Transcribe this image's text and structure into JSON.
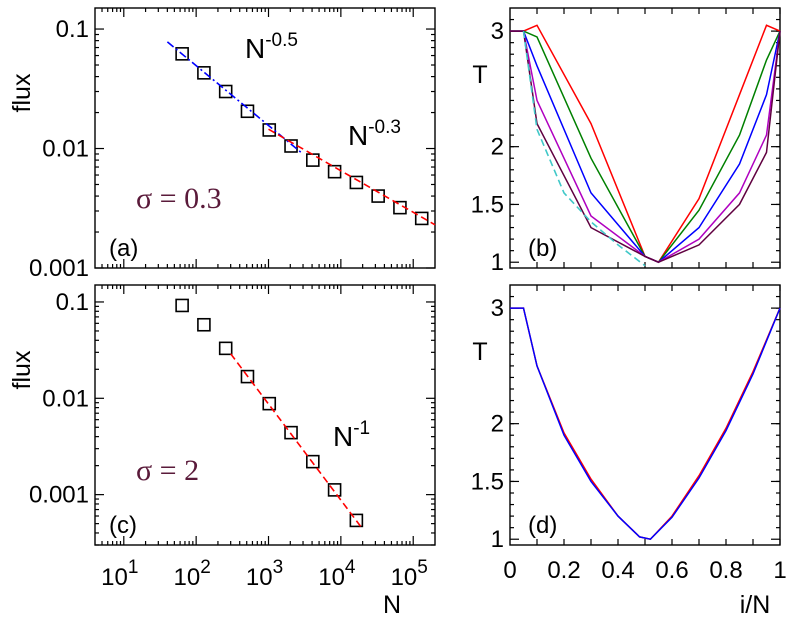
{
  "chart_data": [
    {
      "panel": "a",
      "type": "scatter",
      "panel_label": "(a)",
      "ylabel": "flux",
      "xscale": "log",
      "yscale": "log",
      "xlim": [
        4,
        200000
      ],
      "ylim": [
        0.001,
        0.15
      ],
      "yticks": [
        {
          "v": 0.1,
          "label": "0.1"
        },
        {
          "v": 0.01,
          "label": "0.01"
        },
        {
          "v": 0.001,
          "label": "0.001"
        }
      ],
      "sigma_label": "σ = 0.3",
      "annotations": [
        {
          "base": "N",
          "exp": "-0.5"
        },
        {
          "base": "N",
          "exp": "-0.3"
        }
      ],
      "series": [
        {
          "name": "data",
          "marker": "square",
          "x": [
            64,
            128,
            256,
            512,
            1024,
            2048,
            4096,
            8192,
            16384,
            32768,
            65536,
            131072
          ],
          "y": [
            0.062,
            0.043,
            0.03,
            0.0205,
            0.0143,
            0.0105,
            0.008,
            0.0064,
            0.0052,
            0.004,
            0.0032,
            0.0026
          ]
        },
        {
          "name": "fit N^-0.5",
          "style": "dash-dot",
          "color": "#0000ff",
          "x": [
            40,
            3000
          ],
          "y": [
            0.078,
            0.009
          ]
        },
        {
          "name": "fit N^-0.3",
          "style": "dashed",
          "color": "#ff0000",
          "x": [
            1000,
            200000
          ],
          "y": [
            0.0145,
            0.0023
          ]
        }
      ]
    },
    {
      "panel": "b",
      "type": "line",
      "panel_label": "(b)",
      "ylabel": "T",
      "xlim": [
        0,
        1
      ],
      "ylim": [
        0.95,
        3.2
      ],
      "yticks": [
        {
          "v": 1,
          "label": "1"
        },
        {
          "v": 1.5,
          "label": "1.5"
        },
        {
          "v": 2,
          "label": "2"
        },
        {
          "v": 3,
          "label": "3"
        }
      ],
      "series": [
        {
          "name": "red",
          "color": "#ff0000",
          "x": [
            0,
            0.05,
            0.1,
            0.3,
            0.5,
            0.55,
            0.7,
            0.85,
            0.95,
            1.0
          ],
          "y": [
            3.0,
            3.0,
            3.05,
            2.2,
            1.05,
            1.0,
            1.55,
            2.45,
            3.05,
            3.0
          ]
        },
        {
          "name": "green",
          "color": "#008000",
          "x": [
            0,
            0.05,
            0.1,
            0.3,
            0.5,
            0.55,
            0.7,
            0.85,
            0.95,
            1.0
          ],
          "y": [
            3.0,
            3.0,
            2.95,
            1.9,
            1.05,
            1.0,
            1.45,
            2.1,
            2.75,
            3.0
          ]
        },
        {
          "name": "blue",
          "color": "#0000ff",
          "x": [
            0,
            0.05,
            0.1,
            0.3,
            0.5,
            0.55,
            0.7,
            0.85,
            0.95,
            1.0
          ],
          "y": [
            3.0,
            3.0,
            2.7,
            1.6,
            1.05,
            1.0,
            1.3,
            1.85,
            2.45,
            3.0
          ]
        },
        {
          "name": "purple",
          "color": "#b000c0",
          "x": [
            0,
            0.05,
            0.1,
            0.3,
            0.5,
            0.55,
            0.7,
            0.85,
            0.95,
            1.0
          ],
          "y": [
            3.0,
            3.0,
            2.4,
            1.4,
            1.05,
            1.0,
            1.2,
            1.6,
            2.1,
            3.0
          ]
        },
        {
          "name": "maroon",
          "color": "#600040",
          "x": [
            0,
            0.05,
            0.1,
            0.3,
            0.5,
            0.55,
            0.7,
            0.85,
            0.95,
            1.0
          ],
          "y": [
            3.0,
            3.0,
            2.2,
            1.3,
            1.05,
            1.0,
            1.15,
            1.5,
            1.95,
            3.0
          ]
        },
        {
          "name": "theory",
          "color": "#40c8c8",
          "style": "dashed",
          "x": [
            0.05,
            0.1,
            0.2,
            0.3,
            0.4,
            0.5
          ],
          "y": [
            3.0,
            2.15,
            1.6,
            1.35,
            1.15,
            0.97
          ]
        }
      ]
    },
    {
      "panel": "c",
      "type": "scatter",
      "panel_label": "(c)",
      "ylabel": "flux",
      "xlabel": "N",
      "xscale": "log",
      "yscale": "log",
      "xlim": [
        4,
        200000
      ],
      "ylim": [
        0.0003,
        0.15
      ],
      "xticks": [
        {
          "v": 10,
          "base": "10",
          "exp": "1"
        },
        {
          "v": 100,
          "base": "10",
          "exp": "2"
        },
        {
          "v": 1000,
          "base": "10",
          "exp": "3"
        },
        {
          "v": 10000,
          "base": "10",
          "exp": "4"
        },
        {
          "v": 100000,
          "base": "10",
          "exp": "5"
        }
      ],
      "yticks": [
        {
          "v": 0.1,
          "label": "0.1"
        },
        {
          "v": 0.01,
          "label": "0.01"
        },
        {
          "v": 0.001,
          "label": "0.001"
        }
      ],
      "sigma_label": "σ = 2",
      "annotations": [
        {
          "base": "N",
          "exp": "-1"
        }
      ],
      "series": [
        {
          "name": "data",
          "marker": "square",
          "x": [
            64,
            128,
            256,
            512,
            1024,
            2048,
            4096,
            8192,
            16384
          ],
          "y": [
            0.092,
            0.058,
            0.033,
            0.0168,
            0.0088,
            0.0044,
            0.0022,
            0.00112,
            0.00054
          ]
        },
        {
          "name": "fit N^-1",
          "style": "dashed",
          "color": "#ff0000",
          "x": [
            300,
            20000
          ],
          "y": [
            0.029,
            0.00044
          ]
        }
      ]
    },
    {
      "panel": "d",
      "type": "line",
      "panel_label": "(d)",
      "ylabel": "T",
      "xlabel": "i/N",
      "xlim": [
        0,
        1
      ],
      "ylim": [
        0.95,
        3.2
      ],
      "xticks": [
        {
          "v": 0,
          "label": "0"
        },
        {
          "v": 0.2,
          "label": "0.2"
        },
        {
          "v": 0.4,
          "label": "0.4"
        },
        {
          "v": 0.6,
          "label": "0.6"
        },
        {
          "v": 0.8,
          "label": "0.8"
        },
        {
          "v": 1,
          "label": "1"
        }
      ],
      "yticks": [
        {
          "v": 1,
          "label": "1"
        },
        {
          "v": 1.5,
          "label": "1.5"
        },
        {
          "v": 2,
          "label": "2"
        },
        {
          "v": 3,
          "label": "3"
        }
      ],
      "series": [
        {
          "name": "red",
          "color": "#ff0000",
          "x": [
            0,
            0.05,
            0.1,
            0.2,
            0.3,
            0.4,
            0.48,
            0.52,
            0.6,
            0.7,
            0.8,
            0.9,
            1.0
          ],
          "y": [
            3.0,
            3.0,
            2.5,
            1.92,
            1.52,
            1.2,
            1.02,
            1.0,
            1.2,
            1.55,
            1.96,
            2.45,
            3.0
          ]
        },
        {
          "name": "blue",
          "color": "#0000ff",
          "x": [
            0,
            0.05,
            0.1,
            0.2,
            0.3,
            0.4,
            0.48,
            0.52,
            0.6,
            0.7,
            0.8,
            0.9,
            1.0
          ],
          "y": [
            3.0,
            3.0,
            2.5,
            1.9,
            1.5,
            1.2,
            1.02,
            1.0,
            1.19,
            1.53,
            1.94,
            2.43,
            3.0
          ]
        }
      ]
    }
  ]
}
